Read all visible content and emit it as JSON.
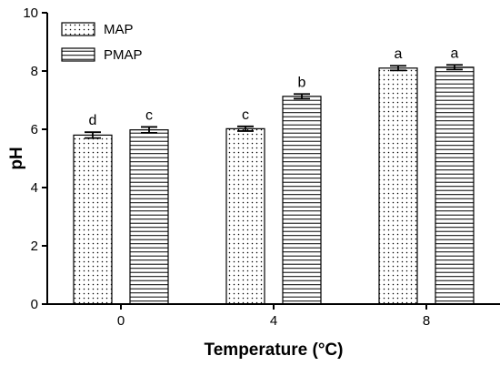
{
  "chart_data": {
    "type": "bar",
    "title": "",
    "xlabel": "Temperature (°C)",
    "ylabel": "pH",
    "categories": [
      "0",
      "4",
      "8"
    ],
    "ylim": [
      0,
      10
    ],
    "yticks": [
      "0",
      "2",
      "4",
      "6",
      "8",
      "10"
    ],
    "grid": false,
    "legend_position": "top-left",
    "series": [
      {
        "name": "MAP",
        "pattern": "dots",
        "values": [
          5.8,
          6.02,
          8.1
        ],
        "errors": [
          0.1,
          0.08,
          0.08
        ],
        "labels": [
          "d",
          "c",
          "a"
        ]
      },
      {
        "name": "PMAP",
        "pattern": "horizontal-lines",
        "values": [
          5.98,
          7.13,
          8.13
        ],
        "errors": [
          0.1,
          0.08,
          0.08
        ],
        "labels": [
          "c",
          "b",
          "a"
        ]
      }
    ]
  },
  "colors": {
    "axis": "#000000",
    "bar_fill": "#ffffff",
    "pattern": "#000000"
  }
}
